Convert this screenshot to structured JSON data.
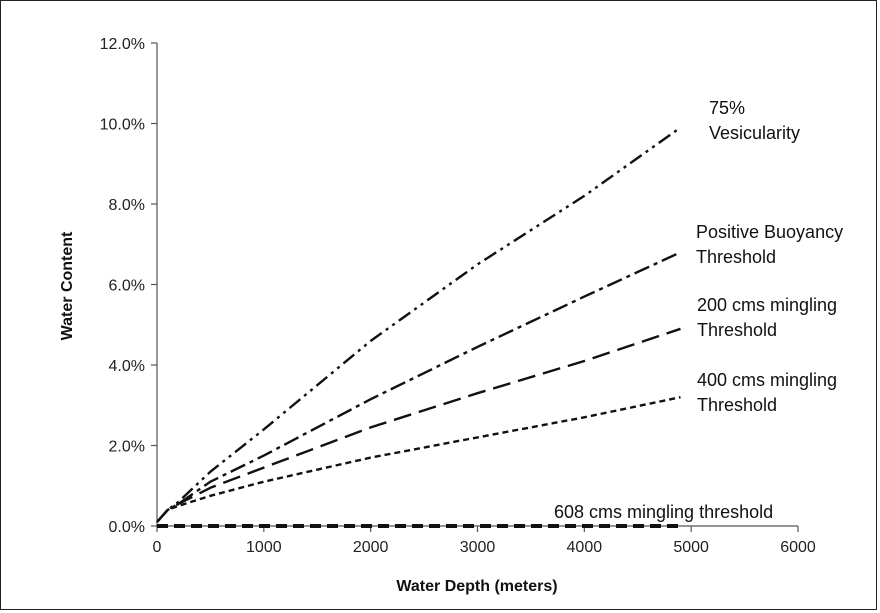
{
  "chart_data": {
    "type": "line",
    "title": "",
    "xlabel": "Water Depth (meters)",
    "ylabel": "Water Content",
    "xlim": [
      0,
      6000
    ],
    "ylim": [
      0,
      0.12
    ],
    "x_ticks": [
      0,
      1000,
      2000,
      3000,
      4000,
      5000,
      6000
    ],
    "x_tick_labels": [
      "0",
      "1000",
      "2000",
      "3000",
      "4000",
      "5000",
      "6000"
    ],
    "y_ticks": [
      0,
      0.02,
      0.04,
      0.06,
      0.08,
      0.1,
      0.12
    ],
    "y_tick_labels": [
      "0.0%",
      "2.0%",
      "4.0%",
      "6.0%",
      "8.0%",
      "10.0%",
      "12.0%"
    ],
    "grid": false,
    "legend": "none (series labeled inline by annotations)",
    "series": [
      {
        "name": "75% Vesicularity",
        "dash": "dash-dot-dot",
        "color": "#111111",
        "x": [
          0,
          100,
          200,
          500,
          1000,
          2000,
          3000,
          4000,
          4900
        ],
        "y": [
          0.001,
          0.004,
          0.006,
          0.0135,
          0.024,
          0.046,
          0.065,
          0.082,
          0.099
        ]
      },
      {
        "name": "Positive Buoyancy Threshold",
        "dash": "dash-dot",
        "color": "#111111",
        "x": [
          0,
          100,
          200,
          500,
          1000,
          2000,
          3000,
          4000,
          4900
        ],
        "y": [
          0.001,
          0.004,
          0.0055,
          0.011,
          0.0175,
          0.0315,
          0.0445,
          0.057,
          0.068
        ]
      },
      {
        "name": "200 cms mingling Threshold",
        "dash": "long-dash",
        "color": "#111111",
        "x": [
          0,
          100,
          200,
          500,
          1000,
          2000,
          3000,
          4000,
          4900
        ],
        "y": [
          0.001,
          0.004,
          0.0055,
          0.0095,
          0.0145,
          0.0245,
          0.033,
          0.041,
          0.049
        ]
      },
      {
        "name": "400 cms mingling Threshold",
        "dash": "short-dash",
        "color": "#111111",
        "x": [
          0,
          100,
          200,
          500,
          1000,
          2000,
          3000,
          4000,
          4900
        ],
        "y": [
          0.001,
          0.004,
          0.005,
          0.0075,
          0.011,
          0.017,
          0.022,
          0.027,
          0.032
        ]
      },
      {
        "name": "608 cms mingling threshold",
        "dash": "thick-dash",
        "color": "#111111",
        "x": [
          0,
          1000,
          2000,
          3000,
          4000,
          4900
        ],
        "y": [
          0,
          0,
          0,
          0,
          0,
          0
        ]
      }
    ],
    "annotations": [
      {
        "lines": [
          "75%",
          "Vesicularity"
        ]
      },
      {
        "lines": [
          "Positive Buoyancy",
          "Threshold"
        ]
      },
      {
        "lines": [
          "200 cms mingling",
          "Threshold"
        ]
      },
      {
        "lines": [
          "400 cms mingling",
          "Threshold"
        ]
      },
      {
        "lines": [
          "608 cms mingling threshold"
        ]
      }
    ]
  }
}
